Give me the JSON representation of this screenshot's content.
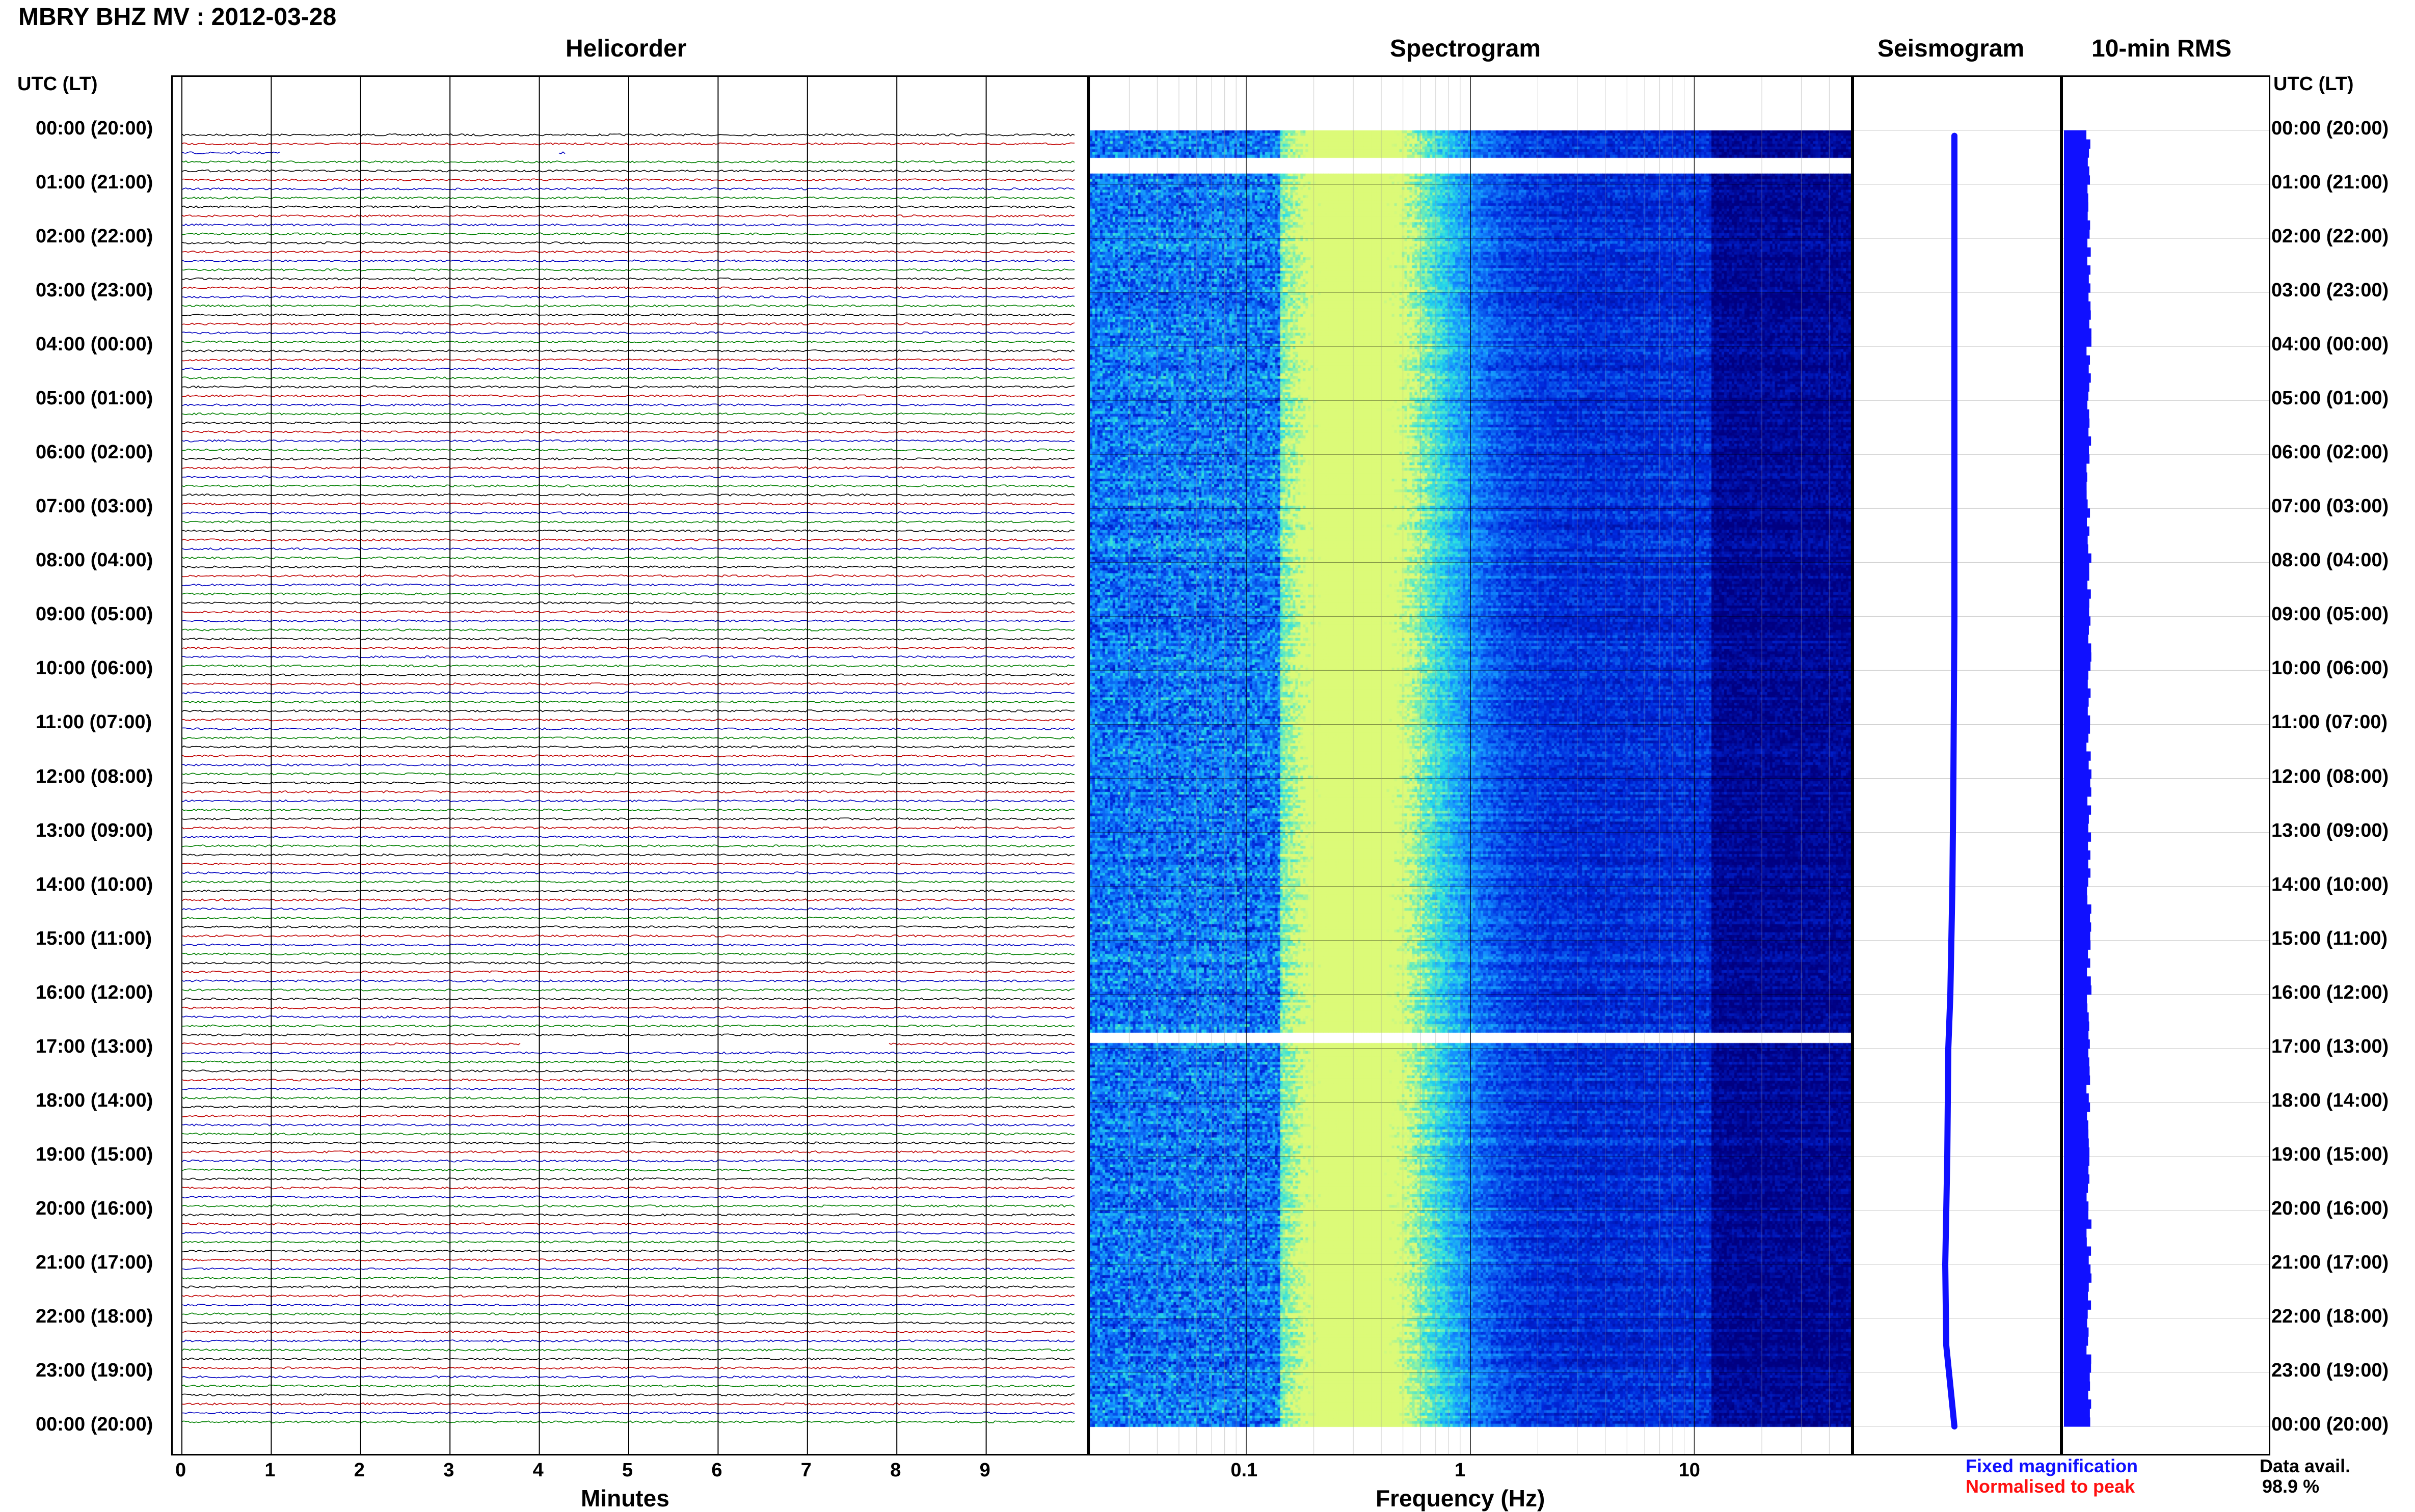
{
  "title": "MBRY BHZ MV : 2012-03-28",
  "time_axis_label": "UTC (LT)",
  "panel_titles": {
    "helicorder": "Helicorder",
    "spectrogram": "Spectrogram",
    "seismogram": "Seismogram",
    "rms": "10-min RMS"
  },
  "x_axis_labels": {
    "helicorder": "Minutes",
    "spectrogram": "Frequency (Hz)"
  },
  "time_ticks": [
    "00:00 (20:00)",
    "01:00 (21:00)",
    "02:00 (22:00)",
    "03:00 (23:00)",
    "04:00 (00:00)",
    "05:00 (01:00)",
    "06:00 (02:00)",
    "07:00 (03:00)",
    "08:00 (04:00)",
    "09:00 (05:00)",
    "10:00 (06:00)",
    "11:00 (07:00)",
    "12:00 (08:00)",
    "13:00 (09:00)",
    "14:00 (10:00)",
    "15:00 (11:00)",
    "16:00 (12:00)",
    "17:00 (13:00)",
    "18:00 (14:00)",
    "19:00 (15:00)",
    "20:00 (16:00)",
    "21:00 (17:00)",
    "22:00 (18:00)",
    "23:00 (19:00)",
    "00:00 (20:00)"
  ],
  "legend": {
    "fixed": "Fixed magnification",
    "normalised": "Normalised to peak",
    "fixed_color": "#1010ff",
    "normalised_color": "#ff1010"
  },
  "data_avail": {
    "label": "Data avail.",
    "value": "98.9 %"
  },
  "chart_data": [
    {
      "type": "line",
      "name": "Helicorder",
      "xlabel": "Minutes",
      "xlim": [
        0,
        10
      ],
      "x_ticks": [
        0,
        1,
        2,
        3,
        4,
        5,
        6,
        7,
        8,
        9
      ],
      "ylim_hours": [
        0,
        24
      ],
      "rows_per_hour": 6,
      "trace_colors": [
        "#000000",
        "#c00000",
        "#0000c0",
        "#008000"
      ],
      "gaps": [
        {
          "hour": 0.33,
          "from_min": 1.1,
          "to_min": 4.2
        },
        {
          "hour": 0.33,
          "from_min": 4.3,
          "to_min": 10
        },
        {
          "hour": 16.83,
          "from_min": 3.8,
          "to_min": 7.9
        }
      ]
    },
    {
      "type": "heatmap",
      "name": "Spectrogram",
      "xlabel": "Frequency (Hz)",
      "xscale": "log",
      "xlim": [
        0.02,
        50
      ],
      "x_ticks": [
        0.1,
        1,
        10
      ],
      "x_tick_labels": [
        "0.1",
        "1",
        "10"
      ],
      "ylim_hours": [
        0,
        24
      ],
      "gaps_hours": [
        [
          0.45,
          0.75
        ],
        [
          16.7,
          16.85
        ]
      ]
    },
    {
      "type": "line",
      "name": "Seismogram",
      "ylim_hours": [
        0,
        24
      ],
      "hours": [
        0.1,
        1,
        3,
        6,
        9,
        12,
        14,
        16,
        17,
        19,
        21,
        22.5,
        24
      ],
      "offset": [
        0.0,
        0.0,
        0.0,
        0.0,
        0.0,
        -0.05,
        -0.1,
        -0.2,
        -0.3,
        -0.35,
        -0.45,
        -0.4,
        0.0
      ]
    },
    {
      "type": "bar",
      "name": "10-min RMS",
      "ylim_hours": [
        0,
        24
      ],
      "note": "blue columns per 10-min window"
    }
  ]
}
